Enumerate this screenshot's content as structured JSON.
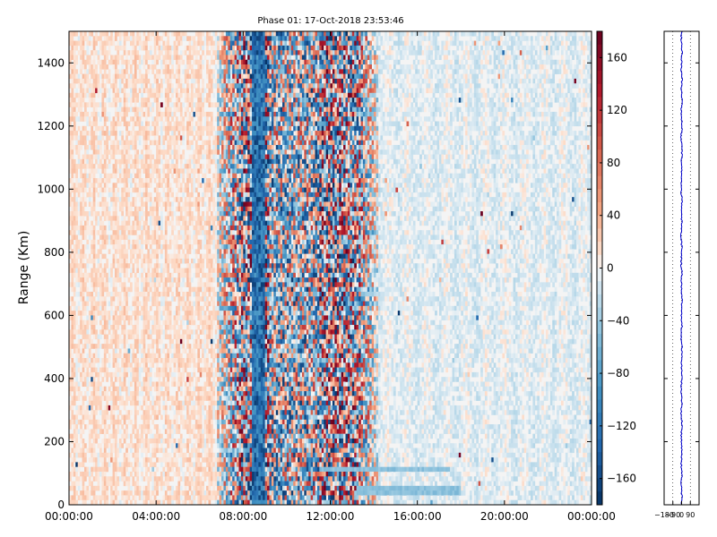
{
  "chart_data": [
    {
      "type": "heatmap",
      "title": "Phase 01: 17-Oct-2018 23:53:46",
      "ylabel": "Range (Km)",
      "xlabel": "",
      "x_ticks": [
        "00:00:00",
        "04:00:00",
        "08:00:00",
        "12:00:00",
        "16:00:00",
        "20:00:00",
        "00:00:00"
      ],
      "x_range_hours": [
        0,
        24
      ],
      "y_ticks": [
        0,
        200,
        400,
        600,
        800,
        1000,
        1200,
        1400
      ],
      "ylim": [
        0,
        1500
      ],
      "colorbar": {
        "ticks": [
          160,
          120,
          80,
          40,
          0,
          -40,
          -80,
          -120,
          -160
        ],
        "range": [
          -180,
          180
        ],
        "colormap": "RdBu_r",
        "low_color": "#053061",
        "mid_color": "#f7f7f7",
        "high_color": "#67001f"
      },
      "structure": {
        "noisy_band_hours": [
          6.8,
          14.2
        ],
        "strong_negative_hours": [
          8.4,
          9.0
        ],
        "quiet_background": "light values near zero, slight positive tint early hours",
        "horizontal_streaks": [
          {
            "range_km": 45,
            "hours": [
              13.2,
              18.0
            ]
          },
          {
            "range_km": 115,
            "hours": [
              11.5,
              17.5
            ]
          }
        ]
      },
      "grid": false
    },
    {
      "type": "line",
      "title": "",
      "x_ticks": [
        "-180",
        "-90",
        "0",
        "90"
      ],
      "xlim": [
        -180,
        180
      ],
      "ylim": [
        0,
        1500
      ],
      "series": [
        {
          "values_note": "profile near 0 across all ranges",
          "mean": 0
        }
      ],
      "grid": true,
      "grid_style": "dotted vertical"
    }
  ]
}
